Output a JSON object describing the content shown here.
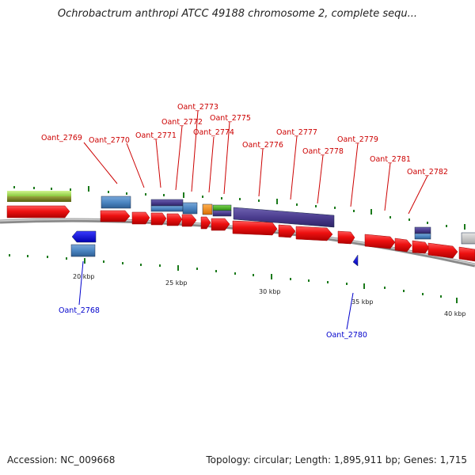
{
  "title": "Ochrobactrum anthropi ATCC 49188 chromosome 2, complete sequ...",
  "footer": {
    "accession": "Accession: NC_009668",
    "stats": "Topology: circular; Length: 1,895,911 bp; Genes: 1,715"
  },
  "colors": {
    "cds": "#ee1111",
    "steelblue": "#4c86c2",
    "purple": "#4b3d8f",
    "orange": "#f08a1c",
    "green": "#44b020",
    "lime": "#a6e05a",
    "olive": "#6f7a1e",
    "gray": "#c8c8c8",
    "label_top": "#cc0000",
    "label_bottom": "#0000cc",
    "tick": "#1b7a1b"
  },
  "gene_labels_top": [
    "Oant_2769",
    "Oant_2770",
    "Oant_2771",
    "Oant_2772",
    "Oant_2773",
    "Oant_2774",
    "Oant_2775",
    "Oant_2776",
    "Oant_2777",
    "Oant_2778",
    "Oant_2779",
    "Oant_2781",
    "Oant_2782"
  ],
  "gene_labels_bottom": [
    "Oant_2768",
    "Oant_2780"
  ],
  "kbp_ticks": [
    "20 kbp",
    "25 kbp",
    "30 kbp",
    "35 kbp",
    "40 kbp"
  ]
}
